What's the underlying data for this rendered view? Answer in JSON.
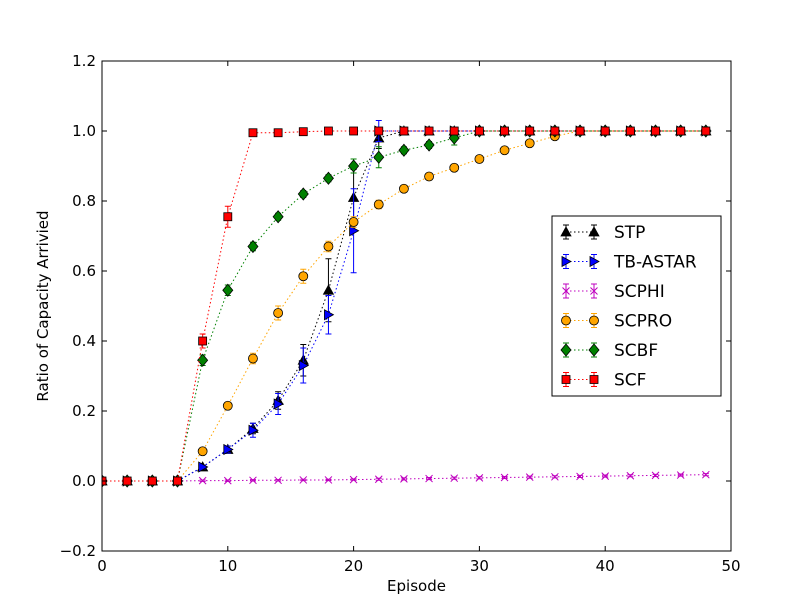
{
  "chart_data": {
    "type": "line",
    "title": "",
    "xlabel": "Episode",
    "ylabel": "Ratio of Capacity Arrivied",
    "xlim": [
      0,
      50
    ],
    "ylim": [
      -0.2,
      1.2
    ],
    "x_ticks": [
      "0",
      "10",
      "20",
      "30",
      "40",
      "50"
    ],
    "y_ticks": [
      "−0.2",
      "0.0",
      "0.2",
      "0.4",
      "0.6",
      "0.8",
      "1.0",
      "1.2"
    ],
    "x_tick_values": [
      0,
      10,
      20,
      30,
      40,
      50
    ],
    "y_tick_values": [
      -0.2,
      0.0,
      0.2,
      0.4,
      0.6,
      0.8,
      1.0,
      1.2
    ],
    "grid": false,
    "legend_position": "center-right",
    "series": [
      {
        "name": "STP",
        "color": "#000000",
        "marker": "triangle-up",
        "x": [
          0,
          2,
          4,
          6,
          8,
          10,
          12,
          14,
          16,
          18,
          20,
          22,
          24,
          26,
          28,
          30,
          32,
          34,
          36,
          38,
          40,
          42,
          44,
          46,
          48
        ],
        "y": [
          0,
          0,
          0,
          0,
          0.04,
          0.09,
          0.15,
          0.23,
          0.345,
          0.545,
          0.81,
          0.98,
          1.0,
          1.0,
          1.0,
          1.0,
          1.0,
          1.0,
          1.0,
          1.0,
          1.0,
          1.0,
          1.0,
          1.0,
          1.0
        ],
        "err": [
          0,
          0,
          0,
          0,
          0.005,
          0.01,
          0.015,
          0.025,
          0.045,
          0.09,
          0.08,
          0.03,
          0,
          0,
          0,
          0,
          0,
          0,
          0,
          0,
          0,
          0,
          0,
          0,
          0
        ]
      },
      {
        "name": "TB-ASTAR",
        "color": "#0000ff",
        "marker": "triangle-right",
        "x": [
          0,
          2,
          4,
          6,
          8,
          10,
          12,
          14,
          16,
          18,
          20,
          22,
          24,
          26,
          28,
          30,
          32,
          34,
          36,
          38,
          40,
          42,
          44,
          46,
          48
        ],
        "y": [
          0,
          0,
          0,
          0,
          0.04,
          0.09,
          0.145,
          0.22,
          0.33,
          0.475,
          0.715,
          1.0,
          1.0,
          1.0,
          1.0,
          1.0,
          1.0,
          1.0,
          1.0,
          1.0,
          1.0,
          1.0,
          1.0,
          1.0,
          1.0
        ],
        "err": [
          0,
          0,
          0,
          0,
          0.005,
          0.01,
          0.02,
          0.03,
          0.05,
          0.055,
          0.12,
          0.03,
          0,
          0,
          0,
          0,
          0,
          0,
          0,
          0,
          0,
          0,
          0,
          0,
          0
        ]
      },
      {
        "name": "SCPHI",
        "color": "#bf00bf",
        "marker": "x",
        "x": [
          0,
          2,
          4,
          6,
          8,
          10,
          12,
          14,
          16,
          18,
          20,
          22,
          24,
          26,
          28,
          30,
          32,
          34,
          36,
          38,
          40,
          42,
          44,
          46,
          48
        ],
        "y": [
          0,
          0,
          0,
          0,
          0.001,
          0.001,
          0.002,
          0.002,
          0.003,
          0.003,
          0.004,
          0.005,
          0.006,
          0.007,
          0.008,
          0.009,
          0.01,
          0.011,
          0.012,
          0.013,
          0.014,
          0.015,
          0.016,
          0.017,
          0.018
        ],
        "err": [
          0,
          0,
          0,
          0,
          0.002,
          0.002,
          0.002,
          0.002,
          0.002,
          0.002,
          0.002,
          0.003,
          0.003,
          0.003,
          0.003,
          0.003,
          0.003,
          0.003,
          0.003,
          0.003,
          0.003,
          0.003,
          0.003,
          0.003,
          0.003
        ]
      },
      {
        "name": "SCPRO",
        "color": "#ffa500",
        "marker": "circle",
        "x": [
          0,
          2,
          4,
          6,
          8,
          10,
          12,
          14,
          16,
          18,
          20,
          22,
          24,
          26,
          28,
          30,
          32,
          34,
          36,
          38,
          40,
          42,
          44,
          46,
          48
        ],
        "y": [
          0,
          0,
          0,
          0,
          0.085,
          0.215,
          0.35,
          0.48,
          0.585,
          0.67,
          0.74,
          0.79,
          0.835,
          0.87,
          0.895,
          0.92,
          0.945,
          0.965,
          0.985,
          1.0,
          1.0,
          1.0,
          1.0,
          1.0,
          1.0
        ],
        "err": [
          0,
          0,
          0,
          0,
          0.005,
          0.01,
          0.015,
          0.02,
          0.02,
          0.015,
          0.015,
          0.012,
          0.01,
          0.01,
          0.01,
          0.008,
          0.008,
          0.008,
          0.006,
          0.005,
          0,
          0,
          0,
          0,
          0
        ]
      },
      {
        "name": "SCBF",
        "color": "#008000",
        "marker": "diamond",
        "x": [
          0,
          2,
          4,
          6,
          8,
          10,
          12,
          14,
          16,
          18,
          20,
          22,
          24,
          26,
          28,
          30,
          32,
          34,
          36,
          38,
          40,
          42,
          44,
          46,
          48
        ],
        "y": [
          0,
          0,
          0,
          0,
          0.345,
          0.545,
          0.67,
          0.755,
          0.82,
          0.865,
          0.9,
          0.925,
          0.945,
          0.96,
          0.98,
          1.0,
          1.0,
          1.0,
          1.0,
          1.0,
          1.0,
          1.0,
          1.0,
          1.0,
          1.0
        ],
        "err": [
          0,
          0,
          0,
          0,
          0.015,
          0.015,
          0.012,
          0.01,
          0.01,
          0.01,
          0.02,
          0.03,
          0.01,
          0.01,
          0.02,
          0,
          0,
          0,
          0,
          0,
          0,
          0,
          0,
          0,
          0
        ]
      },
      {
        "name": "SCF",
        "color": "#ff0000",
        "marker": "square",
        "x": [
          0,
          2,
          4,
          6,
          8,
          10,
          12,
          14,
          16,
          18,
          20,
          22,
          24,
          26,
          28,
          30,
          32,
          34,
          36,
          38,
          40,
          42,
          44,
          46,
          48
        ],
        "y": [
          0,
          0,
          0,
          0,
          0.4,
          0.755,
          0.995,
          0.995,
          0.998,
          1.0,
          1.0,
          1.0,
          1.0,
          1.0,
          1.0,
          1.0,
          1.0,
          1.0,
          1.0,
          1.0,
          1.0,
          1.0,
          1.0,
          1.0,
          1.0
        ],
        "err": [
          0,
          0,
          0,
          0,
          0.02,
          0.03,
          0.005,
          0.005,
          0.003,
          0,
          0,
          0,
          0,
          0,
          0,
          0,
          0,
          0,
          0,
          0,
          0,
          0,
          0,
          0,
          0
        ]
      }
    ]
  }
}
